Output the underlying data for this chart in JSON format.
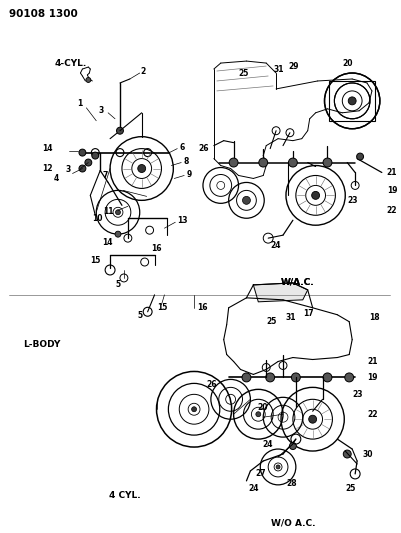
{
  "title": "90108 1300",
  "bg_color": "#ffffff",
  "fig_width": 4.01,
  "fig_height": 5.33,
  "dpi": 100,
  "top_label": "4-CYL.",
  "wac_label": "W/A.C.",
  "lbody_label": "L-BODY",
  "cyl4_label": "4 CYL.",
  "woac_label": "W/O A.C.",
  "gray": "#444444",
  "lt_gray": "#888888"
}
